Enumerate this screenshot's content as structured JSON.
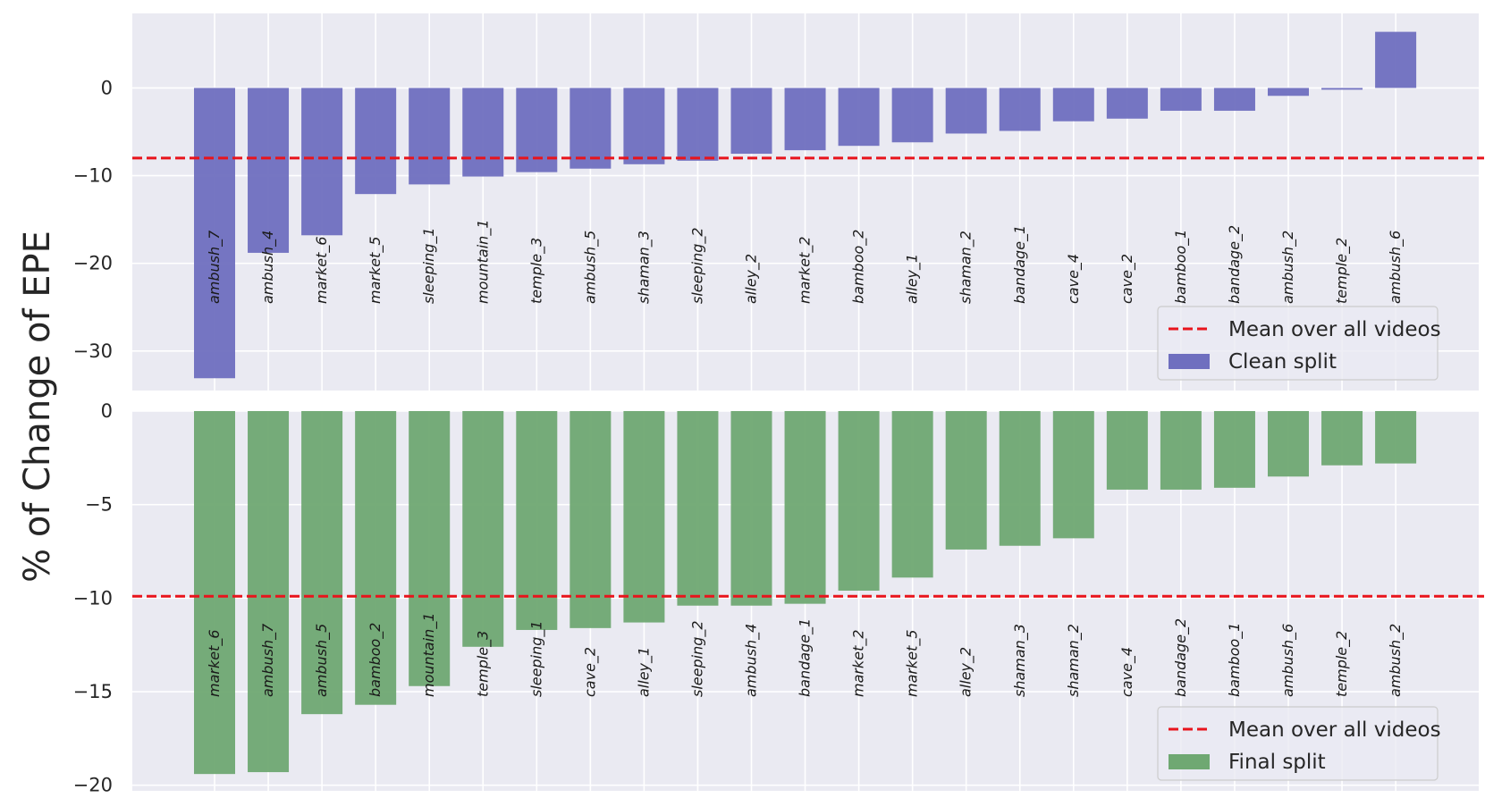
{
  "ylabel": "% of Change of EPE",
  "colors": {
    "mean_line": "#e8141c",
    "clean": "#6f6fbf",
    "final": "#6fa872",
    "background": "#eaeaf2",
    "grid": "#ffffff"
  },
  "chart_data": [
    {
      "type": "bar",
      "title": "",
      "xlabel": "",
      "ylabel": "% of Change of EPE",
      "ylim": [
        -34.5,
        8.5
      ],
      "yticks": [
        0,
        -10,
        -20,
        -30
      ],
      "ytick_labels": [
        "0",
        "−10",
        "−20",
        "−30"
      ],
      "categories": [
        "ambush_7",
        "ambush_4",
        "market_6",
        "market_5",
        "sleeping_1",
        "mountain_1",
        "temple_3",
        "ambush_5",
        "shaman_3",
        "sleeping_2",
        "alley_2",
        "market_2",
        "bamboo_2",
        "alley_1",
        "shaman_2",
        "bandage_1",
        "cave_4",
        "cave_2",
        "bamboo_1",
        "bandage_2",
        "ambush_2",
        "temple_2",
        "ambush_6"
      ],
      "series": [
        {
          "name": "Clean split",
          "values": [
            -33.1,
            -18.8,
            -16.8,
            -12.1,
            -11.0,
            -10.1,
            -9.6,
            -9.2,
            -8.7,
            -8.3,
            -7.5,
            -7.1,
            -6.6,
            -6.2,
            -5.2,
            -4.9,
            -3.8,
            -3.5,
            -2.6,
            -2.6,
            -0.9,
            -0.2,
            6.4
          ]
        }
      ],
      "mean": -8.0,
      "legend": {
        "position": "bottom-right",
        "mean_label": "Mean over all videos",
        "bar_label": "Clean split"
      }
    },
    {
      "type": "bar",
      "title": "",
      "xlabel": "",
      "ylabel": "% of Change of EPE",
      "ylim": [
        -20.3,
        0.0
      ],
      "yticks": [
        0,
        -5,
        -10,
        -15,
        -20
      ],
      "ytick_labels": [
        "0",
        "−5",
        "−10",
        "−15",
        "−20"
      ],
      "categories": [
        "market_6",
        "ambush_7",
        "ambush_5",
        "bamboo_2",
        "mountain_1",
        "temple_3",
        "sleeping_1",
        "cave_2",
        "alley_1",
        "sleeping_2",
        "ambush_4",
        "bandage_1",
        "market_2",
        "market_5",
        "alley_2",
        "shaman_3",
        "shaman_2",
        "cave_4",
        "bandage_2",
        "bamboo_1",
        "ambush_6",
        "temple_2",
        "ambush_2"
      ],
      "series": [
        {
          "name": "Final split",
          "values": [
            -19.4,
            -19.3,
            -16.2,
            -15.7,
            -14.7,
            -12.6,
            -11.7,
            -11.6,
            -11.3,
            -10.4,
            -10.4,
            -10.3,
            -9.6,
            -8.9,
            -7.4,
            -7.2,
            -6.8,
            -4.2,
            -4.2,
            -4.1,
            -3.5,
            -2.9,
            -2.8
          ]
        }
      ],
      "mean": -9.9,
      "legend": {
        "position": "bottom-right",
        "mean_label": "Mean over all videos",
        "bar_label": "Final split"
      }
    }
  ]
}
